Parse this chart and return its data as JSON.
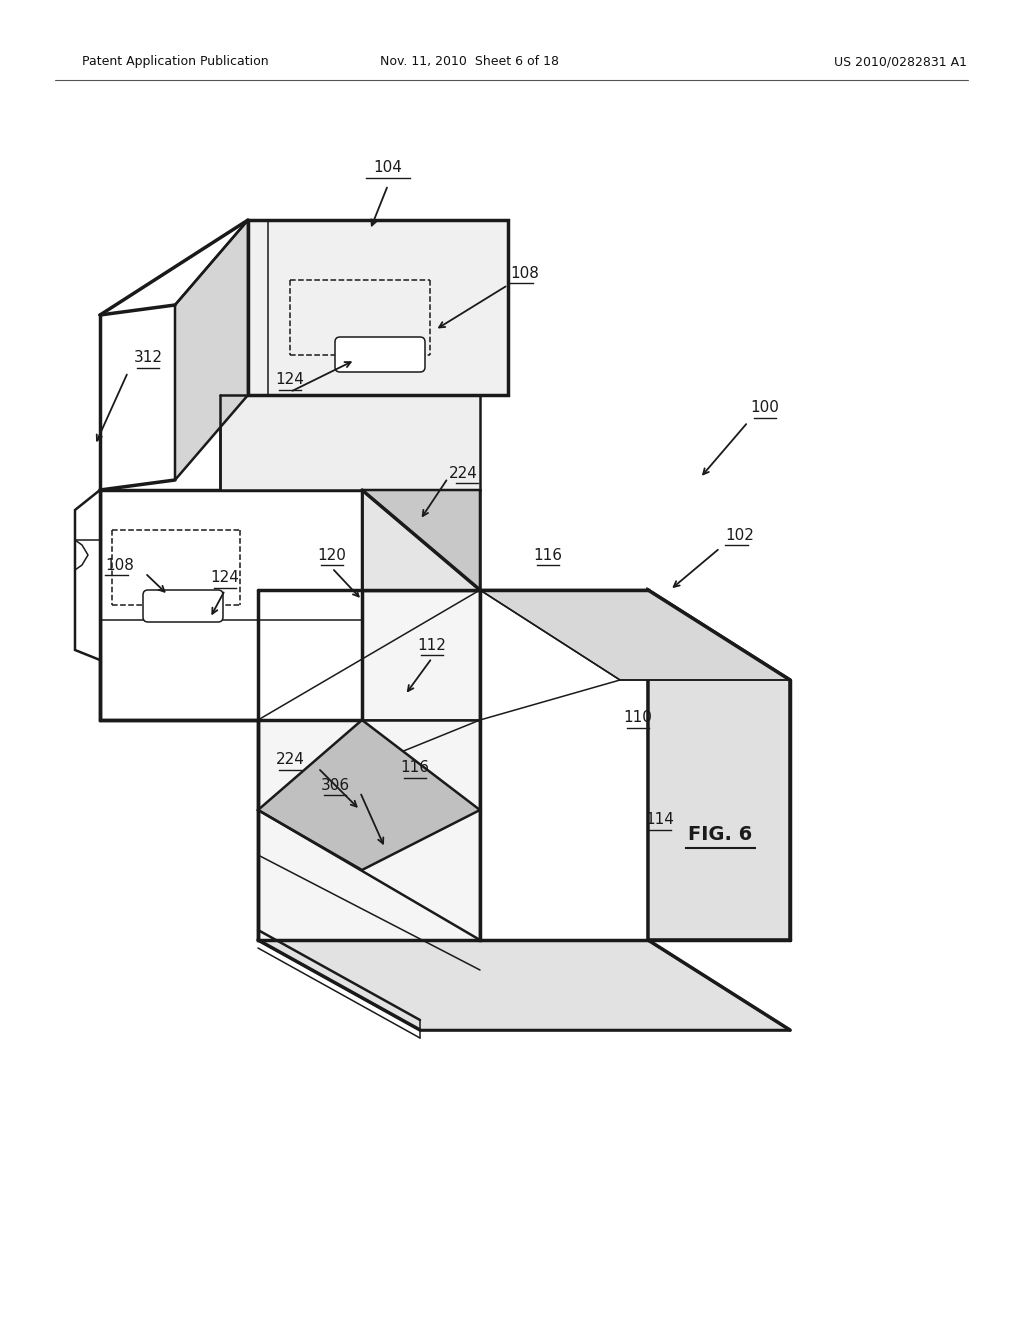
{
  "bg_color": "#ffffff",
  "line_color": "#1a1a1a",
  "header_left": "Patent Application Publication",
  "header_center": "Nov. 11, 2010  Sheet 6 of 18",
  "header_right": "US 2010/0282831 A1",
  "fig_label": "FIG. 6",
  "lw_main": 1.8,
  "lw_thick": 2.5,
  "lw_thin": 1.1,
  "lw_dashed": 1.1,
  "label_fontsize": 11,
  "header_fontsize": 9,
  "fig_label_fontsize": 13
}
